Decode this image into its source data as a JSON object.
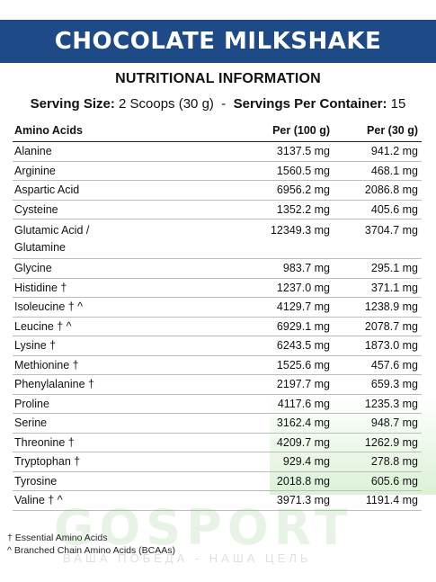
{
  "banner": {
    "title": "CHOCOLATE MILKSHAKE"
  },
  "heading": "NUTRITIONAL INFORMATION",
  "serving": {
    "size_label": "Serving Size:",
    "size_value": "2 Scoops (30 g)",
    "separator": "-",
    "per_container_label": "Servings Per Container:",
    "per_container_value": "15"
  },
  "table": {
    "headers": [
      "Amino Acids",
      "Per (100 g)",
      "Per  (30 g)"
    ],
    "rows": [
      {
        "name": "Alanine",
        "per100": "3137.5 mg",
        "per30": "941.2 mg"
      },
      {
        "name": "Arginine",
        "per100": "1560.5 mg",
        "per30": "468.1 mg"
      },
      {
        "name": "Aspartic Acid",
        "per100": "6956.2 mg",
        "per30": "2086.8 mg"
      },
      {
        "name": "Cysteine",
        "per100": "1352.2 mg",
        "per30": "405.6 mg"
      },
      {
        "name": "Glutamic Acid /",
        "name2": "Glutamine",
        "per100": "12349.3 mg",
        "per30": "3704.7 mg"
      },
      {
        "name": "Glycine",
        "per100": "983.7 mg",
        "per30": "295.1 mg"
      },
      {
        "name": "Histidine †",
        "per100": "1237.0 mg",
        "per30": "371.1 mg"
      },
      {
        "name": "Isoleucine † ^",
        "per100": "4129.7 mg",
        "per30": "1238.9 mg"
      },
      {
        "name": "Leucine † ^",
        "per100": "6929.1 mg",
        "per30": "2078.7 mg"
      },
      {
        "name": "Lysine †",
        "per100": "6243.5 mg",
        "per30": "1873.0 mg"
      },
      {
        "name": "Methionine †",
        "per100": "1525.6 mg",
        "per30": "457.6 mg"
      },
      {
        "name": "Phenylalanine †",
        "per100": "2197.7 mg",
        "per30": "659.3 mg"
      },
      {
        "name": "Proline",
        "per100": "4117.6 mg",
        "per30": "1235.3 mg"
      },
      {
        "name": "Serine",
        "per100": "3162.4 mg",
        "per30": "948.7 mg"
      },
      {
        "name": "Threonine †",
        "per100": "4209.7 mg",
        "per30": "1262.9 mg"
      },
      {
        "name": "Tryptophan †",
        "per100": "929.4 mg",
        "per30": "278.8 mg"
      },
      {
        "name": "Tyrosine",
        "per100": "2018.8 mg",
        "per30": "605.6 mg"
      },
      {
        "name": "Valine † ^",
        "per100": "3971.3 mg",
        "per30": "1191.4 mg"
      }
    ]
  },
  "footnotes": {
    "essential": "† Essential Amino Acids",
    "bcaa": "^ Branched Chain Amino Acids (BCAAs)"
  },
  "watermark": {
    "brand": "GOSPORT",
    "tagline": "ВАША ПОБЕДА - НАША ЦЕЛЬ"
  },
  "colors": {
    "banner_bg": "#1e4a87",
    "watermark_green": "#78be6e"
  }
}
